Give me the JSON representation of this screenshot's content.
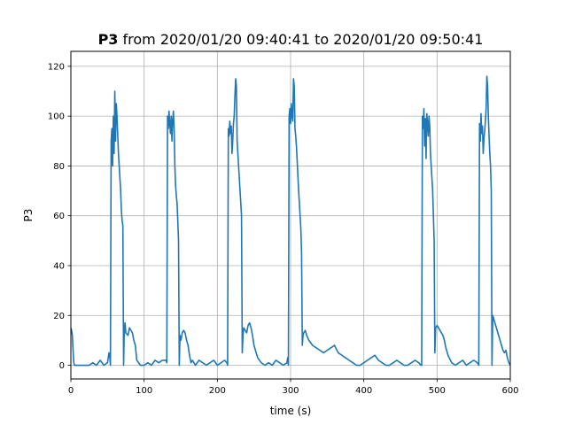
{
  "chart_data": {
    "type": "line",
    "title_bold": "P3",
    "title_rest": " from 2020/01/20 09:40:41 to 2020/01/20 09:50:41",
    "xlabel": "time (s)",
    "ylabel": "P3",
    "xlim": [
      0,
      600
    ],
    "ylim": [
      -5.5,
      126
    ],
    "grid": true,
    "x_ticks": [
      0,
      100,
      200,
      300,
      400,
      500,
      600
    ],
    "y_ticks": [
      0,
      20,
      40,
      60,
      80,
      100,
      120
    ],
    "line_color": "#1f77b4",
    "series": [
      {
        "x": [
          0,
          1,
          2,
          3,
          4,
          5,
          6,
          8,
          10,
          15,
          20,
          25,
          30,
          35,
          40,
          45,
          50,
          52,
          53,
          54,
          55,
          56,
          57,
          58,
          59,
          60,
          61,
          62,
          63,
          64,
          65,
          66,
          67,
          68,
          69,
          70,
          71,
          72,
          73,
          74,
          75,
          78,
          80,
          82,
          84,
          86,
          88,
          90,
          95,
          100,
          105,
          110,
          115,
          120,
          125,
          130,
          131,
          132,
          133,
          134,
          135,
          136,
          137,
          138,
          139,
          140,
          141,
          142,
          143,
          144,
          145,
          146,
          147,
          148,
          149,
          150,
          151,
          152,
          154,
          156,
          158,
          160,
          162,
          164,
          166,
          168,
          170,
          175,
          180,
          185,
          190,
          195,
          200,
          205,
          210,
          213,
          214,
          215,
          216,
          217,
          218,
          219,
          220,
          221,
          222,
          223,
          224,
          225,
          226,
          227,
          228,
          229,
          230,
          231,
          232,
          233,
          234,
          235,
          236,
          238,
          240,
          242,
          244,
          246,
          248,
          250,
          252,
          255,
          260,
          265,
          270,
          275,
          280,
          285,
          290,
          295,
          296,
          297,
          298,
          299,
          300,
          301,
          302,
          303,
          304,
          305,
          306,
          307,
          308,
          309,
          310,
          311,
          312,
          313,
          314,
          315,
          316,
          317,
          318,
          320,
          322,
          325,
          330,
          335,
          340,
          345,
          350,
          355,
          360,
          365,
          370,
          375,
          380,
          385,
          390,
          395,
          400,
          405,
          410,
          415,
          420,
          425,
          430,
          435,
          440,
          445,
          450,
          455,
          460,
          465,
          470,
          475,
          478,
          479,
          480,
          481,
          482,
          483,
          484,
          485,
          486,
          487,
          488,
          489,
          490,
          491,
          492,
          493,
          494,
          495,
          496,
          497,
          498,
          500,
          502,
          504,
          506,
          508,
          510,
          512,
          515,
          520,
          525,
          530,
          535,
          540,
          545,
          550,
          555,
          557,
          558,
          559,
          560,
          561,
          562,
          563,
          564,
          565,
          566,
          567,
          568,
          569,
          570,
          571,
          572,
          573,
          574,
          575,
          576,
          578,
          580,
          582,
          584,
          586,
          588,
          590,
          592,
          594,
          596,
          598,
          600
        ],
        "y": [
          15,
          14,
          12,
          6,
          1,
          0,
          0,
          0,
          0,
          0,
          0,
          0,
          1,
          0,
          2,
          0,
          1,
          5,
          4,
          0,
          90,
          95,
          80,
          100,
          85,
          110,
          90,
          105,
          100,
          92,
          85,
          80,
          75,
          70,
          62,
          58,
          56,
          0,
          15,
          17,
          13,
          12,
          15,
          14,
          13,
          10,
          8,
          2,
          0,
          0,
          1,
          0,
          2,
          1,
          2,
          2,
          1,
          100,
          95,
          102,
          97,
          93,
          100,
          90,
          98,
          102,
          95,
          80,
          72,
          68,
          65,
          58,
          50,
          0,
          12,
          10,
          11,
          13,
          14,
          13,
          10,
          8,
          4,
          1,
          2,
          1,
          0,
          2,
          1,
          0,
          1,
          2,
          0,
          1,
          2,
          1,
          0,
          95,
          92,
          98,
          93,
          96,
          85,
          90,
          97,
          100,
          108,
          115,
          112,
          90,
          85,
          80,
          75,
          70,
          65,
          60,
          5,
          12,
          15,
          14,
          13,
          16,
          17,
          15,
          12,
          8,
          6,
          3,
          1,
          0,
          1,
          0,
          2,
          1,
          0,
          1,
          3,
          0,
          100,
          103,
          97,
          105,
          100,
          98,
          115,
          112,
          95,
          92,
          88,
          82,
          76,
          70,
          65,
          60,
          55,
          45,
          8,
          12,
          13,
          14,
          12,
          10,
          8,
          7,
          6,
          5,
          6,
          7,
          8,
          5,
          4,
          3,
          2,
          1,
          0,
          0,
          1,
          2,
          3,
          4,
          2,
          1,
          0,
          0,
          1,
          2,
          1,
          0,
          0,
          1,
          2,
          1,
          0,
          0,
          100,
          95,
          103,
          88,
          99,
          83,
          101,
          97,
          92,
          100,
          96,
          85,
          80,
          75,
          70,
          60,
          50,
          5,
          15,
          16,
          15,
          14,
          13,
          12,
          10,
          7,
          4,
          1,
          0,
          1,
          2,
          0,
          1,
          2,
          1,
          0,
          97,
          90,
          101,
          93,
          96,
          85,
          91,
          94,
          98,
          103,
          116,
          112,
          100,
          92,
          85,
          80,
          70,
          0,
          20,
          18,
          16,
          14,
          12,
          10,
          8,
          6,
          5,
          6,
          3,
          1,
          0
        ]
      }
    ]
  }
}
